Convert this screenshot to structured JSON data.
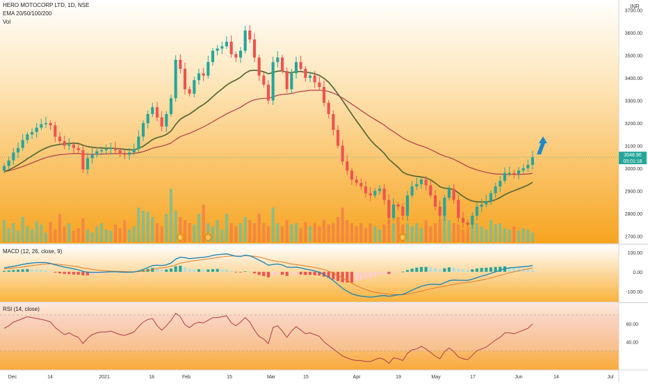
{
  "header": {
    "symbol_line": "HERO MOTOCORP LTD, 1D, NSE",
    "ema_line": "EMA 20/50/100/200",
    "vol_line": "Vol",
    "currency": "INR"
  },
  "colors": {
    "up": "#26a69a",
    "down": "#ef5350",
    "ema_fast": "#5d6b3a",
    "ema_slow": "#b23a4a",
    "macd_line": "#1e88b8",
    "signal_line": "#e07c2a",
    "rsi_line": "#b23a4a",
    "arrow": "#1e88c8",
    "bg_top": "#ffffff",
    "bg_bottom": "#f5a623"
  },
  "price_panel": {
    "y_ticks": [
      "3700.00",
      "3600.00",
      "3500.00",
      "3400.00",
      "3300.00",
      "3200.00",
      "3100.00",
      "3000.00",
      "2900.00",
      "2800.00",
      "2700.00"
    ],
    "last_price": "3048.90",
    "countdown": "05:01:18",
    "event_markers": [
      "E",
      "D",
      "E"
    ]
  },
  "macd_panel": {
    "label": "MACD (12, 26, close, 9)",
    "y_ticks": [
      "100.00",
      "0.00",
      "-100.00"
    ]
  },
  "rsi_panel": {
    "label": "RSI (14, close)",
    "y_ticks": [
      "60.00",
      "40.00"
    ]
  },
  "x_axis": {
    "ticks": [
      "Dec",
      "14",
      "2021",
      "18",
      "Feb",
      "15",
      "Mar",
      "15",
      "Apr",
      "19",
      "May",
      "17",
      "Jun",
      "14",
      "Jul"
    ]
  },
  "chart_data": {
    "type": "candlestick",
    "title": "HERO MOTOCORP LTD, 1D, NSE",
    "ylim": [
      2680,
      3720
    ],
    "closes": [
      3010,
      3035,
      3070,
      3090,
      3125,
      3150,
      3160,
      3180,
      3195,
      3200,
      3190,
      3140,
      3120,
      3100,
      3105,
      3090,
      3080,
      2995,
      3045,
      3060,
      3075,
      3080,
      3085,
      3090,
      3080,
      3065,
      3060,
      3070,
      3085,
      3140,
      3200,
      3240,
      3270,
      3225,
      3185,
      3240,
      3310,
      3480,
      3440,
      3350,
      3330,
      3390,
      3420,
      3410,
      3470,
      3520,
      3530,
      3540,
      3560,
      3505,
      3490,
      3520,
      3610,
      3570,
      3490,
      3410,
      3370,
      3300,
      3470,
      3490,
      3430,
      3350,
      3420,
      3470,
      3440,
      3400,
      3410,
      3380,
      3360,
      3290,
      3240,
      3170,
      3100,
      3030,
      2990,
      2950,
      2935,
      2920,
      2890,
      2880,
      2900,
      2910,
      2860,
      2780,
      2840,
      2830,
      2790,
      2880,
      2920,
      2930,
      2950,
      2925,
      2880,
      2830,
      2790,
      2870,
      2910,
      2860,
      2780,
      2760,
      2750,
      2790,
      2830,
      2840,
      2855,
      2890,
      2920,
      2945,
      2980,
      2980,
      2975,
      2990,
      3000,
      3015,
      3049
    ],
    "ema_fast": [
      2985,
      2993,
      3003,
      3015,
      3028,
      3042,
      3055,
      3068,
      3080,
      3090,
      3098,
      3102,
      3106,
      3108,
      3110,
      3111,
      3110,
      3102,
      3096,
      3093,
      3091,
      3090,
      3089,
      3089,
      3088,
      3086,
      3084,
      3082,
      3082,
      3087,
      3098,
      3112,
      3127,
      3136,
      3141,
      3150,
      3165,
      3194,
      3217,
      3230,
      3240,
      3254,
      3270,
      3282,
      3298,
      3317,
      3335,
      3351,
      3368,
      3381,
      3391,
      3403,
      3421,
      3432,
      3434,
      3432,
      3427,
      3418,
      3424,
      3430,
      3431,
      3424,
      3423,
      3428,
      3428,
      3425,
      3423,
      3418,
      3411,
      3398,
      3381,
      3357,
      3329,
      3300,
      3270,
      3239,
      3210,
      3182,
      3153,
      3126,
      3104,
      3086,
      3066,
      3040,
      3022,
      3004,
      2983,
      2973,
      2968,
      2964,
      2962,
      2958,
      2949,
      2935,
      2918,
      2912,
      2911,
      2906,
      2891,
      2876,
      2863,
      2855,
      2852,
      2851,
      2851,
      2854,
      2861,
      2871,
      2883,
      2893,
      2901,
      2909,
      2917,
      2926,
      2938
    ],
    "ema_slow": [
      2985,
      2989,
      2994,
      3001,
      3008,
      3016,
      3024,
      3032,
      3040,
      3047,
      3053,
      3057,
      3060,
      3062,
      3064,
      3065,
      3066,
      3063,
      3062,
      3062,
      3062,
      3063,
      3064,
      3065,
      3065,
      3065,
      3065,
      3065,
      3066,
      3069,
      3074,
      3081,
      3089,
      3094,
      3098,
      3104,
      3112,
      3127,
      3140,
      3148,
      3155,
      3164,
      3174,
      3183,
      3194,
      3206,
      3218,
      3229,
      3241,
      3251,
      3260,
      3270,
      3284,
      3295,
      3303,
      3307,
      3310,
      3310,
      3316,
      3323,
      3327,
      3328,
      3331,
      3336,
      3340,
      3342,
      3345,
      3346,
      3346,
      3344,
      3340,
      3333,
      3323,
      3311,
      3298,
      3284,
      3270,
      3256,
      3242,
      3228,
      3216,
      3204,
      3191,
      3175,
      3162,
      3148,
      3134,
      3123,
      3114,
      3106,
      3099,
      3092,
      3083,
      3073,
      3062,
      3054,
      3048,
      3040,
      3030,
      3019,
      3008,
      3000,
      2993,
      2987,
      2982,
      2978,
      2975,
      2974,
      2973,
      2973,
      2973,
      2973,
      2974,
      2975,
      2978
    ],
    "volume": [
      0.35,
      0.22,
      0.3,
      0.18,
      0.4,
      0.25,
      0.2,
      0.33,
      0.28,
      0.15,
      0.32,
      0.2,
      0.45,
      0.25,
      0.3,
      0.18,
      0.22,
      0.38,
      0.2,
      0.15,
      0.25,
      0.3,
      0.2,
      0.18,
      0.28,
      0.22,
      0.35,
      0.2,
      0.25,
      0.55,
      0.5,
      0.48,
      0.4,
      0.3,
      0.25,
      0.45,
      0.85,
      0.5,
      0.4,
      0.35,
      0.3,
      0.28,
      0.45,
      0.6,
      0.3,
      0.25,
      0.35,
      0.2,
      0.45,
      0.3,
      0.25,
      0.3,
      0.4,
      0.35,
      0.3,
      0.45,
      0.3,
      0.25,
      0.55,
      0.3,
      0.25,
      0.35,
      0.28,
      0.3,
      0.22,
      0.32,
      0.25,
      0.3,
      0.25,
      0.35,
      0.28,
      0.3,
      0.4,
      0.55,
      0.35,
      0.3,
      0.25,
      0.3,
      0.22,
      0.3,
      0.25,
      0.2,
      0.28,
      0.35,
      0.3,
      0.4,
      0.28,
      0.3,
      0.25,
      0.3,
      0.22,
      0.35,
      0.25,
      0.3,
      0.35,
      0.6,
      0.35,
      0.3,
      0.28,
      0.2,
      0.22,
      0.35,
      0.3,
      0.25,
      0.2,
      0.35,
      0.28,
      0.3,
      0.22,
      0.2,
      0.25,
      0.18,
      0.22,
      0.2,
      0.15
    ],
    "macd": [
      20,
      24,
      28,
      33,
      38,
      42,
      45,
      47,
      48,
      47,
      43,
      36,
      30,
      24,
      20,
      15,
      10,
      2,
      -2,
      -3,
      -3,
      -2,
      -1,
      0,
      0,
      -1,
      -2,
      -2,
      -1,
      4,
      12,
      22,
      32,
      34,
      32,
      36,
      45,
      65,
      75,
      72,
      68,
      70,
      73,
      74,
      78,
      84,
      88,
      90,
      92,
      86,
      80,
      79,
      85,
      82,
      72,
      60,
      48,
      34,
      38,
      40,
      35,
      24,
      22,
      24,
      20,
      14,
      10,
      4,
      -2,
      -14,
      -28,
      -45,
      -65,
      -85,
      -100,
      -113,
      -120,
      -125,
      -128,
      -130,
      -128,
      -124,
      -122,
      -126,
      -122,
      -118,
      -116,
      -106,
      -94,
      -84,
      -74,
      -68,
      -64,
      -64,
      -66,
      -56,
      -46,
      -42,
      -44,
      -44,
      -44,
      -38,
      -30,
      -22,
      -16,
      -8,
      0,
      8,
      16,
      20,
      22,
      24,
      26,
      28,
      32
    ],
    "signal": [
      15,
      17,
      19,
      22,
      25,
      28,
      32,
      35,
      38,
      40,
      41,
      40,
      38,
      35,
      32,
      29,
      25,
      20,
      16,
      12,
      9,
      7,
      5,
      4,
      3,
      2,
      1,
      0,
      0,
      1,
      3,
      7,
      12,
      17,
      20,
      24,
      28,
      36,
      44,
      49,
      53,
      57,
      60,
      63,
      66,
      70,
      73,
      77,
      80,
      81,
      81,
      81,
      82,
      82,
      80,
      76,
      70,
      63,
      58,
      54,
      50,
      45,
      40,
      37,
      34,
      30,
      26,
      22,
      17,
      11,
      3,
      -6,
      -18,
      -31,
      -45,
      -58,
      -71,
      -82,
      -91,
      -99,
      -105,
      -109,
      -112,
      -115,
      -116,
      -117,
      -117,
      -115,
      -110,
      -105,
      -99,
      -93,
      -87,
      -83,
      -79,
      -74,
      -69,
      -64,
      -60,
      -57,
      -54,
      -51,
      -47,
      -42,
      -37,
      -31,
      -25,
      -18,
      -12,
      -5,
      0,
      5,
      10,
      15,
      20
    ],
    "rsi": [
      55,
      58,
      62,
      64,
      66,
      68,
      67,
      66,
      65,
      64,
      62,
      56,
      52,
      48,
      50,
      47,
      45,
      38,
      44,
      48,
      50,
      51,
      51,
      52,
      50,
      48,
      47,
      49,
      51,
      57,
      62,
      65,
      66,
      58,
      53,
      58,
      64,
      72,
      68,
      59,
      56,
      60,
      62,
      61,
      64,
      67,
      67,
      68,
      69,
      61,
      58,
      62,
      67,
      62,
      53,
      46,
      43,
      38,
      56,
      58,
      52,
      45,
      52,
      57,
      53,
      49,
      50,
      48,
      46,
      40,
      36,
      32,
      28,
      24,
      22,
      20,
      19,
      19,
      18,
      18,
      20,
      22,
      20,
      16,
      22,
      21,
      19,
      27,
      31,
      32,
      35,
      32,
      28,
      24,
      21,
      29,
      33,
      29,
      23,
      21,
      20,
      25,
      30,
      32,
      34,
      38,
      42,
      45,
      50,
      50,
      49,
      51,
      53,
      55,
      60
    ]
  }
}
